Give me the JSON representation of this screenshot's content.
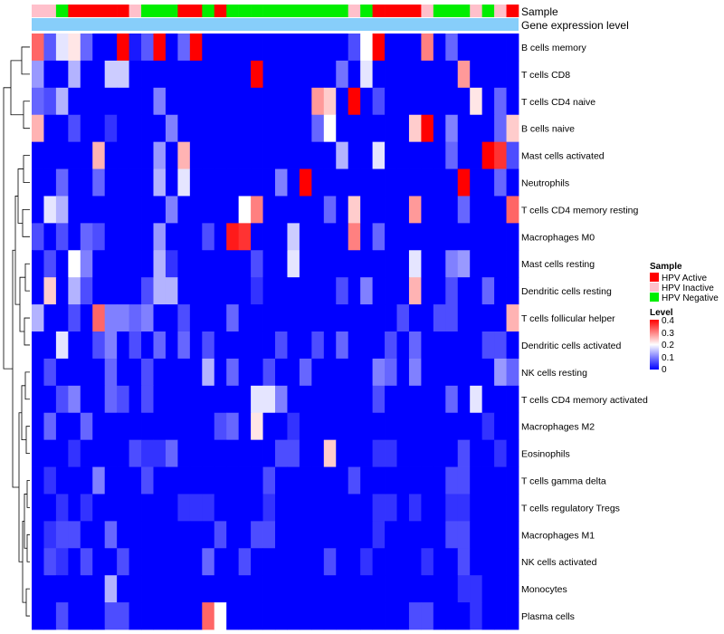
{
  "chart_data": {
    "type": "heatmap",
    "title": "",
    "annotation_rows": [
      "Sample",
      "Gene expression level"
    ],
    "rows": [
      "B cells memory",
      "T cells CD8",
      "T cells CD4 naive",
      "B cells naive",
      "Mast cells activated",
      "Neutrophils",
      "T cells CD4 memory resting",
      "Macrophages M0",
      "Mast cells resting",
      "Dendritic cells resting",
      "T cells follicular helper",
      "Dendritic cells activated",
      "NK cells resting",
      "T cells CD4 memory activated",
      "Macrophages M2",
      "Eosinophils",
      "T cells gamma delta",
      "T cells regulatory  Tregs",
      "Macrophages M1",
      "NK cells activated",
      "Monocytes",
      "Plasma cells"
    ],
    "samples": [
      "Inactive",
      "Inactive",
      "Negative",
      "Active",
      "Active",
      "Active",
      "Active",
      "Active",
      "Inactive",
      "Negative",
      "Negative",
      "Negative",
      "Active",
      "Active",
      "Negative",
      "Active",
      "Negative",
      "Negative",
      "Negative",
      "Negative",
      "Negative",
      "Negative",
      "Negative",
      "Negative",
      "Negative",
      "Negative",
      "Inactive",
      "Negative",
      "Active",
      "Active",
      "Active",
      "Active",
      "Inactive",
      "Negative",
      "Negative",
      "Negative",
      "Inactive",
      "Negative",
      "Inactive",
      "Active"
    ],
    "values": [
      [
        0.32,
        0.07,
        0.18,
        0.22,
        0.08,
        0.0,
        0.0,
        0.42,
        0.02,
        0.07,
        0.4,
        0.0,
        0.08,
        0.4,
        0.0,
        0.0,
        0.0,
        0.0,
        0.0,
        0.0,
        0.0,
        0.0,
        0.0,
        0.0,
        0.0,
        0.0,
        0.06,
        0.2,
        0.42,
        0.0,
        0.0,
        0.0,
        0.3,
        0.0,
        0.08,
        0.0,
        0.0,
        0.0,
        0.0,
        0.0
      ],
      [
        0.12,
        0.0,
        0.0,
        0.14,
        0.0,
        0.0,
        0.16,
        0.16,
        0.0,
        0.0,
        0.0,
        0.0,
        0.0,
        0.0,
        0.0,
        0.0,
        0.0,
        0.0,
        0.42,
        0.0,
        0.0,
        0.0,
        0.0,
        0.0,
        0.0,
        0.09,
        0.0,
        0.18,
        0.0,
        0.0,
        0.0,
        0.0,
        0.0,
        0.0,
        0.0,
        0.28,
        0.0,
        0.0,
        0.0,
        0.0
      ],
      [
        0.08,
        0.06,
        0.14,
        0.0,
        0.0,
        0.0,
        0.0,
        0.0,
        0.0,
        0.0,
        0.1,
        0.0,
        0.0,
        0.0,
        0.0,
        0.0,
        0.0,
        0.0,
        0.0,
        0.0,
        0.0,
        0.0,
        0.0,
        0.28,
        0.24,
        0.0,
        0.42,
        0.0,
        0.06,
        0.0,
        0.0,
        0.0,
        0.0,
        0.0,
        0.0,
        0.0,
        0.22,
        0.0,
        0.08,
        0.0
      ],
      [
        0.26,
        0.0,
        0.0,
        0.06,
        0.0,
        0.0,
        0.04,
        0.0,
        0.0,
        0.0,
        0.0,
        0.1,
        0.0,
        0.0,
        0.0,
        0.0,
        0.0,
        0.0,
        0.0,
        0.0,
        0.0,
        0.0,
        0.0,
        0.08,
        0.2,
        0.0,
        0.0,
        0.0,
        0.0,
        0.0,
        0.0,
        0.24,
        0.4,
        0.0,
        0.1,
        0.0,
        0.0,
        0.0,
        0.08,
        0.24
      ],
      [
        0.0,
        0.0,
        0.0,
        0.0,
        0.0,
        0.26,
        0.0,
        0.0,
        0.0,
        0.0,
        0.12,
        0.0,
        0.26,
        0.0,
        0.0,
        0.0,
        0.0,
        0.0,
        0.0,
        0.0,
        0.0,
        0.0,
        0.0,
        0.0,
        0.0,
        0.14,
        0.0,
        0.0,
        0.18,
        0.0,
        0.0,
        0.0,
        0.0,
        0.0,
        0.08,
        0.0,
        0.0,
        0.42,
        0.36,
        0.06
      ],
      [
        0.0,
        0.0,
        0.08,
        0.0,
        0.0,
        0.08,
        0.0,
        0.0,
        0.0,
        0.0,
        0.14,
        0.0,
        0.18,
        0.0,
        0.0,
        0.0,
        0.0,
        0.0,
        0.0,
        0.0,
        0.1,
        0.0,
        0.42,
        0.0,
        0.0,
        0.0,
        0.0,
        0.0,
        0.0,
        0.0,
        0.0,
        0.0,
        0.0,
        0.0,
        0.0,
        0.42,
        0.0,
        0.0,
        0.08,
        0.0
      ],
      [
        0.0,
        0.18,
        0.14,
        0.0,
        0.0,
        0.0,
        0.0,
        0.0,
        0.0,
        0.0,
        0.0,
        0.1,
        0.0,
        0.0,
        0.0,
        0.0,
        0.0,
        0.2,
        0.3,
        0.0,
        0.0,
        0.0,
        0.0,
        0.0,
        0.08,
        0.0,
        0.24,
        0.0,
        0.0,
        0.0,
        0.0,
        0.28,
        0.0,
        0.0,
        0.0,
        0.08,
        0.0,
        0.0,
        0.0,
        0.32
      ],
      [
        0.06,
        0.0,
        0.06,
        0.0,
        0.08,
        0.06,
        0.0,
        0.0,
        0.0,
        0.0,
        0.12,
        0.0,
        0.0,
        0.0,
        0.06,
        0.0,
        0.38,
        0.36,
        0.0,
        0.0,
        0.0,
        0.16,
        0.0,
        0.0,
        0.0,
        0.0,
        0.3,
        0.0,
        0.08,
        0.0,
        0.0,
        0.0,
        0.0,
        0.0,
        0.0,
        0.0,
        0.0,
        0.0,
        0.0,
        0.0
      ],
      [
        0.0,
        0.06,
        0.0,
        0.2,
        0.1,
        0.0,
        0.0,
        0.0,
        0.0,
        0.0,
        0.14,
        0.04,
        0.0,
        0.0,
        0.0,
        0.0,
        0.0,
        0.0,
        0.06,
        0.0,
        0.0,
        0.18,
        0.0,
        0.0,
        0.0,
        0.0,
        0.0,
        0.0,
        0.0,
        0.0,
        0.0,
        0.18,
        0.0,
        0.0,
        0.1,
        0.12,
        0.0,
        0.0,
        0.0,
        0.0
      ],
      [
        0.0,
        0.24,
        0.0,
        0.14,
        0.06,
        0.0,
        0.0,
        0.0,
        0.0,
        0.06,
        0.14,
        0.14,
        0.0,
        0.0,
        0.0,
        0.0,
        0.0,
        0.0,
        0.04,
        0.0,
        0.0,
        0.0,
        0.0,
        0.0,
        0.0,
        0.06,
        0.0,
        0.1,
        0.0,
        0.0,
        0.0,
        0.26,
        0.0,
        0.0,
        0.06,
        0.0,
        0.0,
        0.08,
        0.0,
        0.0
      ],
      [
        0.14,
        0.0,
        0.0,
        0.06,
        0.0,
        0.32,
        0.1,
        0.1,
        0.08,
        0.1,
        0.0,
        0.0,
        0.06,
        0.0,
        0.0,
        0.0,
        0.08,
        0.0,
        0.0,
        0.0,
        0.0,
        0.0,
        0.0,
        0.0,
        0.0,
        0.0,
        0.0,
        0.0,
        0.0,
        0.0,
        0.06,
        0.0,
        0.0,
        0.06,
        0.06,
        0.0,
        0.0,
        0.0,
        0.0,
        0.26
      ],
      [
        0.0,
        0.0,
        0.18,
        0.0,
        0.0,
        0.06,
        0.1,
        0.0,
        0.06,
        0.0,
        0.08,
        0.0,
        0.08,
        0.0,
        0.06,
        0.0,
        0.0,
        0.0,
        0.0,
        0.0,
        0.06,
        0.0,
        0.0,
        0.06,
        0.0,
        0.08,
        0.0,
        0.0,
        0.0,
        0.06,
        0.0,
        0.08,
        0.0,
        0.0,
        0.0,
        0.0,
        0.0,
        0.06,
        0.06,
        0.0
      ],
      [
        0.0,
        0.06,
        0.0,
        0.0,
        0.0,
        0.0,
        0.08,
        0.0,
        0.0,
        0.06,
        0.0,
        0.0,
        0.0,
        0.0,
        0.14,
        0.0,
        0.08,
        0.0,
        0.0,
        0.06,
        0.0,
        0.0,
        0.08,
        0.0,
        0.0,
        0.0,
        0.0,
        0.0,
        0.1,
        0.08,
        0.0,
        0.1,
        0.0,
        0.0,
        0.0,
        0.0,
        0.0,
        0.0,
        0.12,
        0.08
      ],
      [
        0.0,
        0.0,
        0.06,
        0.1,
        0.0,
        0.0,
        0.08,
        0.06,
        0.0,
        0.06,
        0.0,
        0.0,
        0.0,
        0.0,
        0.0,
        0.0,
        0.0,
        0.0,
        0.18,
        0.18,
        0.1,
        0.0,
        0.0,
        0.0,
        0.0,
        0.0,
        0.0,
        0.0,
        0.06,
        0.0,
        0.0,
        0.0,
        0.0,
        0.0,
        0.08,
        0.0,
        0.18,
        0.0,
        0.0,
        0.0
      ],
      [
        0.0,
        0.08,
        0.0,
        0.0,
        0.08,
        0.0,
        0.0,
        0.0,
        0.0,
        0.0,
        0.0,
        0.0,
        0.0,
        0.0,
        0.0,
        0.06,
        0.08,
        0.0,
        0.22,
        0.0,
        0.0,
        0.04,
        0.0,
        0.0,
        0.0,
        0.0,
        0.0,
        0.0,
        0.0,
        0.0,
        0.0,
        0.0,
        0.0,
        0.0,
        0.0,
        0.0,
        0.0,
        0.04,
        0.0,
        0.0
      ],
      [
        0.0,
        0.0,
        0.0,
        0.04,
        0.0,
        0.0,
        0.0,
        0.0,
        0.06,
        0.04,
        0.04,
        0.08,
        0.0,
        0.0,
        0.0,
        0.0,
        0.0,
        0.0,
        0.0,
        0.0,
        0.06,
        0.06,
        0.0,
        0.0,
        0.24,
        0.0,
        0.0,
        0.0,
        0.04,
        0.04,
        0.0,
        0.0,
        0.0,
        0.0,
        0.0,
        0.06,
        0.0,
        0.0,
        0.04,
        0.0
      ],
      [
        0.0,
        0.04,
        0.0,
        0.0,
        0.0,
        0.1,
        0.0,
        0.0,
        0.0,
        0.06,
        0.0,
        0.0,
        0.0,
        0.0,
        0.0,
        0.0,
        0.0,
        0.0,
        0.0,
        0.06,
        0.0,
        0.0,
        0.0,
        0.0,
        0.0,
        0.0,
        0.06,
        0.0,
        0.0,
        0.0,
        0.0,
        0.0,
        0.0,
        0.0,
        0.06,
        0.06,
        0.0,
        0.0,
        0.0,
        0.0
      ],
      [
        0.0,
        0.0,
        0.04,
        0.0,
        0.04,
        0.0,
        0.0,
        0.0,
        0.0,
        0.0,
        0.0,
        0.0,
        0.04,
        0.04,
        0.04,
        0.0,
        0.0,
        0.0,
        0.0,
        0.04,
        0.0,
        0.0,
        0.0,
        0.0,
        0.0,
        0.0,
        0.0,
        0.0,
        0.04,
        0.04,
        0.0,
        0.04,
        0.0,
        0.0,
        0.04,
        0.04,
        0.0,
        0.0,
        0.0,
        0.0
      ],
      [
        0.0,
        0.04,
        0.06,
        0.06,
        0.0,
        0.0,
        0.08,
        0.0,
        0.0,
        0.0,
        0.0,
        0.0,
        0.0,
        0.0,
        0.0,
        0.06,
        0.0,
        0.0,
        0.06,
        0.06,
        0.0,
        0.0,
        0.0,
        0.0,
        0.0,
        0.0,
        0.0,
        0.0,
        0.04,
        0.0,
        0.0,
        0.0,
        0.0,
        0.0,
        0.06,
        0.06,
        0.0,
        0.0,
        0.0,
        0.0
      ],
      [
        0.0,
        0.06,
        0.04,
        0.0,
        0.06,
        0.0,
        0.0,
        0.06,
        0.0,
        0.0,
        0.0,
        0.0,
        0.0,
        0.0,
        0.08,
        0.0,
        0.0,
        0.06,
        0.0,
        0.0,
        0.0,
        0.0,
        0.0,
        0.0,
        0.06,
        0.0,
        0.0,
        0.04,
        0.0,
        0.0,
        0.0,
        0.0,
        0.04,
        0.0,
        0.0,
        0.06,
        0.0,
        0.0,
        0.0,
        0.0
      ],
      [
        0.0,
        0.0,
        0.0,
        0.0,
        0.0,
        0.0,
        0.14,
        0.0,
        0.0,
        0.0,
        0.0,
        0.0,
        0.0,
        0.0,
        0.0,
        0.0,
        0.0,
        0.0,
        0.0,
        0.0,
        0.0,
        0.0,
        0.0,
        0.0,
        0.0,
        0.0,
        0.0,
        0.0,
        0.0,
        0.0,
        0.0,
        0.0,
        0.0,
        0.0,
        0.0,
        0.04,
        0.04,
        0.0,
        0.0,
        0.0
      ],
      [
        0.0,
        0.0,
        0.06,
        0.0,
        0.0,
        0.0,
        0.06,
        0.06,
        0.0,
        0.0,
        0.0,
        0.0,
        0.0,
        0.0,
        0.32,
        0.2,
        0.0,
        0.0,
        0.0,
        0.0,
        0.0,
        0.0,
        0.0,
        0.0,
        0.0,
        0.0,
        0.0,
        0.0,
        0.0,
        0.0,
        0.0,
        0.06,
        0.06,
        0.0,
        0.0,
        0.0,
        0.04,
        0.0,
        0.0,
        0.0
      ]
    ],
    "sample_legend": {
      "title": "Sample",
      "items": [
        {
          "label": "HPV Active",
          "key": "Active",
          "color": "#ff0000"
        },
        {
          "label": "HPV Inactive",
          "key": "Inactive",
          "color": "#ffc0cb"
        },
        {
          "label": "HPV Negative",
          "key": "Negative",
          "color": "#00ee00"
        }
      ]
    },
    "expression_color": "#87cefa",
    "level_legend": {
      "title": "Level",
      "ticks": [
        "0.4",
        "0.3",
        "0.2",
        "0.1",
        "0"
      ],
      "range": [
        0,
        0.4
      ]
    },
    "colors": {
      "low": "#0000ff",
      "mid": "#ffffff",
      "high": "#ff0000"
    }
  }
}
